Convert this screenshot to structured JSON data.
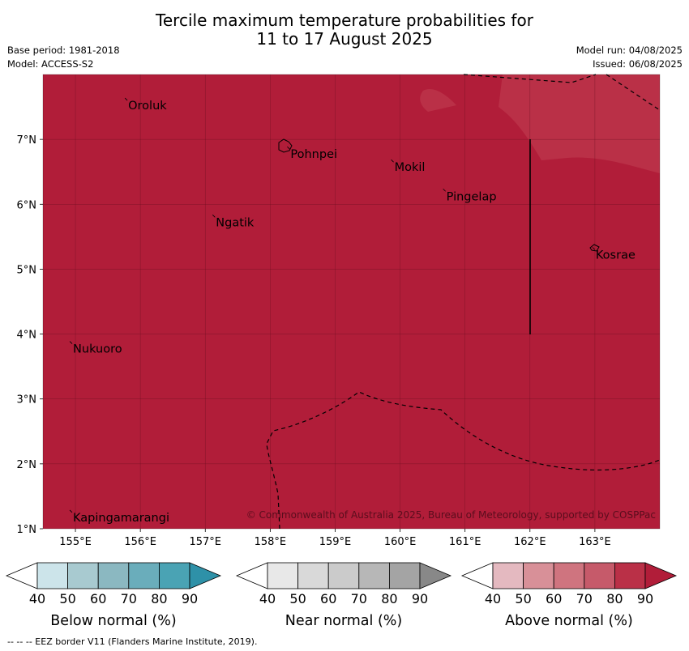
{
  "title": {
    "line1": "Tercile maximum temperature probabilities for",
    "line2": "11 to 17 August 2025"
  },
  "meta_left": {
    "base_period": "Base period: 1981-2018",
    "model": "Model: ACCESS-S2"
  },
  "meta_right": {
    "model_run": "Model run: 04/08/2025",
    "issued": "Issued: 06/08/2025"
  },
  "map": {
    "lon_range": [
      154.5,
      164.0
    ],
    "lat_range": [
      1.0,
      8.0
    ],
    "lon_ticks": [
      "155°E",
      "156°E",
      "157°E",
      "158°E",
      "159°E",
      "160°E",
      "161°E",
      "162°E",
      "163°E"
    ],
    "lat_ticks": [
      "7°N",
      "6°N",
      "5°N",
      "4°N",
      "3°N",
      "2°N",
      "1°N"
    ],
    "fill_color": "#b11d39",
    "light_fill_color": "#ba3047",
    "places": [
      {
        "name": "Oroluk",
        "lon": 155.8,
        "lat": 7.6
      },
      {
        "name": "Pohnpei",
        "lon": 158.3,
        "lat": 6.85
      },
      {
        "name": "Mokil",
        "lon": 159.9,
        "lat": 6.65
      },
      {
        "name": "Pingelap",
        "lon": 160.7,
        "lat": 6.2
      },
      {
        "name": "Ngatik",
        "lon": 157.15,
        "lat": 5.8
      },
      {
        "name": "Kosrae",
        "lon": 163.0,
        "lat": 5.3
      },
      {
        "name": "Nukuoro",
        "lon": 154.95,
        "lat": 3.85
      },
      {
        "name": "Kapingamarangi",
        "lon": 154.95,
        "lat": 1.25
      }
    ],
    "copyright": "© Commonwealth of Australia 2025, Bureau of Meteorology, supported by COSPPac"
  },
  "legend": {
    "ticks": [
      "40",
      "50",
      "60",
      "70",
      "80",
      "90"
    ],
    "groups": [
      {
        "label": "Below normal (%)",
        "colors": [
          "#ffffff",
          "#cce4ea",
          "#a8cad0",
          "#8bb8c1",
          "#6aadbb",
          "#4aa3b4",
          "#2e91a8"
        ]
      },
      {
        "label": "Near normal (%)",
        "colors": [
          "#ffffff",
          "#e8e8e8",
          "#d9d9d9",
          "#cbcbcb",
          "#b7b7b7",
          "#a4a4a4",
          "#888888"
        ]
      },
      {
        "label": "Above normal (%)",
        "colors": [
          "#ffffff",
          "#e4b9c0",
          "#d89098",
          "#cf747f",
          "#c65a6a",
          "#ba3047",
          "#b11d39"
        ]
      }
    ]
  },
  "footer": "--  --  -- EEZ border V11 (Flanders Marine Institute, 2019)."
}
